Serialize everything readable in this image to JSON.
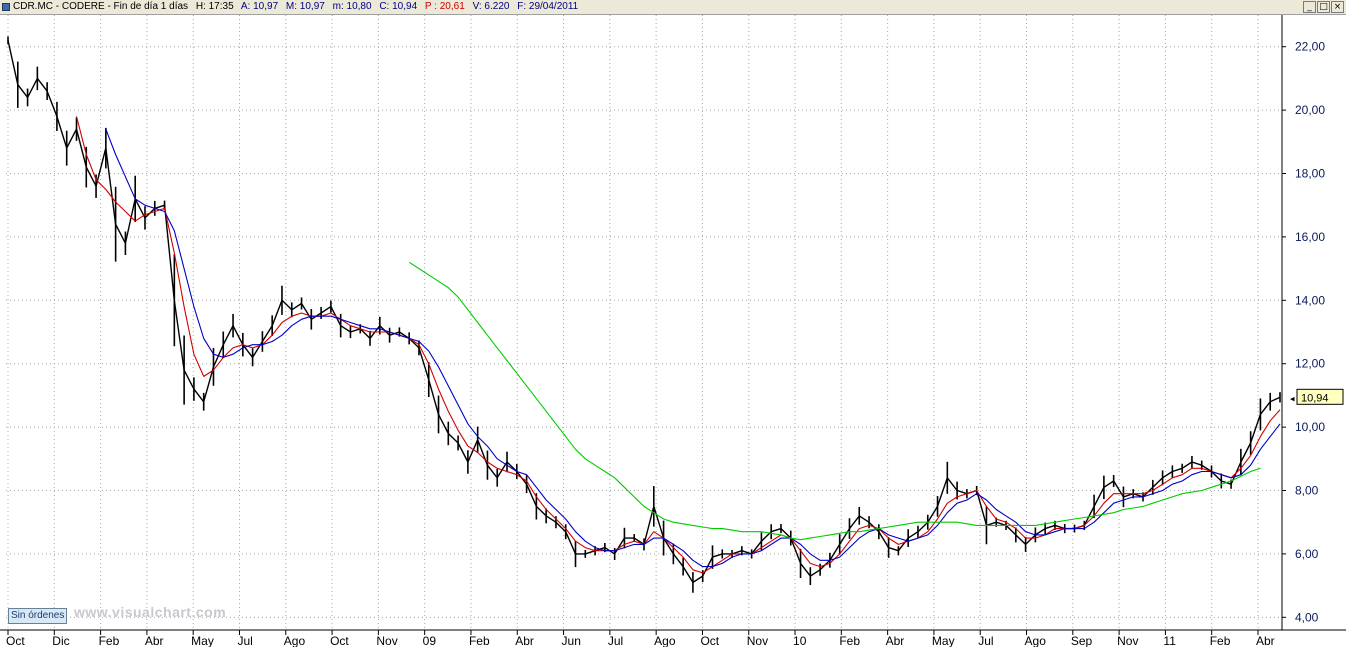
{
  "window": {
    "title_parts": [
      {
        "text": "CDR.MC - CODERE - Fin de día 1 días",
        "style": "normal"
      },
      {
        "text": "H: 17:35",
        "style": "normal"
      },
      {
        "text": "A: 10,97",
        "style": "blue"
      },
      {
        "text": "M: 10,97",
        "style": "blue"
      },
      {
        "text": "m: 10,80",
        "style": "blue"
      },
      {
        "text": "C: 10,94",
        "style": "blue"
      },
      {
        "text": "P : 20,61",
        "style": "red"
      },
      {
        "text": "V: 6.220",
        "style": "blue"
      },
      {
        "text": "F: 29/04/2011",
        "style": "blue"
      }
    ],
    "buttons": [
      "_",
      "□",
      "×"
    ]
  },
  "watermark": "www.visualchart.com",
  "orders_button": "Sin órdenes",
  "colors": {
    "price": "#000000",
    "ma_red": "#d00000",
    "ma_blue": "#0000c8",
    "ma_green": "#00cc00",
    "grid": "#a8a8a8",
    "axis_label": "#0a1a5a",
    "last_label_bg": "#ffffc0"
  },
  "chart_data": {
    "type": "line",
    "title": "",
    "xlabel": "",
    "ylabel": "",
    "ylim": [
      3.6,
      23.0
    ],
    "y_ticks": [
      "22,00",
      "20,00",
      "18,00",
      "16,00",
      "14,00",
      "12,00",
      "10,00",
      "8,00",
      "6,00",
      "4,00"
    ],
    "x_ticks": [
      "Oct",
      "Dic",
      "Feb",
      "Abr",
      "May",
      "Jul",
      "Ago",
      "Oct",
      "Nov",
      "09",
      "Feb",
      "Abr",
      "Jun",
      "Jul",
      "Ago",
      "Oct",
      "Nov",
      "10",
      "Feb",
      "Abr",
      "May",
      "Jul",
      "Ago",
      "Sep",
      "Nov",
      "11",
      "Feb",
      "Abr"
    ],
    "last_value_label": "10,94",
    "grid": true,
    "series": [
      {
        "role": "price",
        "values": [
          22.2,
          20.8,
          20.4,
          21.0,
          20.6,
          19.8,
          18.8,
          19.4,
          18.2,
          17.6,
          18.8,
          16.4,
          15.8,
          17.2,
          16.6,
          16.9,
          17.0,
          14.0,
          11.8,
          11.2,
          10.8,
          11.9,
          12.6,
          13.2,
          12.6,
          12.2,
          12.7,
          13.2,
          14.0,
          13.7,
          13.9,
          13.4,
          13.6,
          13.8,
          13.2,
          13.0,
          13.1,
          12.8,
          13.2,
          12.9,
          13.0,
          12.8,
          12.5,
          11.5,
          10.4,
          9.8,
          9.5,
          8.9,
          9.6,
          8.8,
          8.4,
          8.9,
          8.6,
          8.2,
          7.5,
          7.2,
          7.0,
          6.7,
          6.0,
          6.0,
          6.1,
          6.2,
          6.0,
          6.5,
          6.5,
          6.3,
          7.5,
          6.5,
          6.0,
          5.6,
          5.1,
          5.3,
          5.9,
          6.0,
          6.0,
          6.1,
          6.0,
          6.4,
          6.7,
          6.8,
          6.5,
          5.7,
          5.3,
          5.5,
          5.8,
          6.3,
          6.8,
          7.2,
          7.0,
          6.7,
          6.2,
          6.1,
          6.5,
          6.7,
          7.0,
          7.5,
          8.4,
          8.0,
          7.9,
          8.0,
          6.9,
          7.0,
          6.9,
          6.6,
          6.3,
          6.6,
          6.8,
          6.9,
          6.8,
          6.8,
          6.9,
          7.5,
          8.1,
          8.3,
          7.8,
          7.9,
          7.8,
          8.1,
          8.4,
          8.6,
          8.7,
          8.9,
          8.8,
          8.6,
          8.3,
          8.2,
          8.9,
          9.5,
          10.4,
          10.8,
          10.94
        ]
      },
      {
        "role": "ma_red",
        "values": [
          null,
          null,
          null,
          null,
          null,
          null,
          null,
          19.8,
          18.6,
          17.8,
          17.5,
          17.1,
          16.8,
          16.5,
          16.7,
          16.8,
          16.9,
          15.5,
          13.8,
          12.3,
          11.6,
          11.8,
          12.2,
          12.5,
          12.6,
          12.5,
          12.6,
          12.9,
          13.3,
          13.5,
          13.6,
          13.5,
          13.5,
          13.6,
          13.4,
          13.2,
          13.1,
          13.0,
          13.0,
          13.0,
          12.9,
          12.8,
          12.6,
          12.0,
          11.2,
          10.5,
          9.9,
          9.4,
          9.2,
          8.9,
          8.7,
          8.6,
          8.5,
          8.3,
          7.8,
          7.4,
          7.1,
          6.8,
          6.4,
          6.2,
          6.1,
          6.1,
          6.1,
          6.3,
          6.4,
          6.3,
          6.7,
          6.5,
          6.2,
          5.9,
          5.5,
          5.4,
          5.6,
          5.8,
          6.0,
          6.0,
          6.0,
          6.2,
          6.4,
          6.6,
          6.5,
          6.1,
          5.7,
          5.6,
          5.7,
          6.0,
          6.4,
          6.8,
          6.9,
          6.8,
          6.5,
          6.3,
          6.4,
          6.5,
          6.7,
          7.1,
          7.6,
          7.8,
          7.9,
          8.0,
          7.5,
          7.1,
          7.0,
          6.8,
          6.5,
          6.5,
          6.6,
          6.8,
          6.8,
          6.8,
          6.9,
          7.2,
          7.6,
          7.9,
          7.9,
          7.9,
          7.9,
          8.0,
          8.2,
          8.4,
          8.5,
          8.7,
          8.7,
          8.6,
          8.5,
          8.4,
          8.7,
          9.1,
          9.7,
          10.2,
          10.55
        ]
      },
      {
        "role": "ma_blue",
        "values": [
          null,
          null,
          null,
          null,
          null,
          null,
          null,
          null,
          null,
          null,
          19.4,
          18.6,
          17.9,
          17.2,
          17.0,
          16.9,
          16.8,
          16.2,
          15.0,
          13.8,
          12.8,
          12.3,
          12.2,
          12.3,
          12.5,
          12.6,
          12.6,
          12.7,
          12.9,
          13.2,
          13.4,
          13.5,
          13.5,
          13.5,
          13.4,
          13.3,
          13.2,
          13.1,
          13.1,
          13.0,
          12.9,
          12.8,
          12.7,
          12.4,
          11.9,
          11.3,
          10.7,
          10.1,
          9.7,
          9.4,
          9.0,
          8.8,
          8.6,
          8.5,
          8.1,
          7.7,
          7.4,
          7.1,
          6.7,
          6.4,
          6.2,
          6.1,
          6.1,
          6.2,
          6.3,
          6.3,
          6.5,
          6.5,
          6.3,
          6.1,
          5.8,
          5.6,
          5.6,
          5.7,
          5.9,
          6.0,
          6.0,
          6.1,
          6.3,
          6.5,
          6.5,
          6.3,
          6.0,
          5.8,
          5.8,
          5.9,
          6.2,
          6.5,
          6.7,
          6.8,
          6.6,
          6.5,
          6.4,
          6.5,
          6.6,
          6.9,
          7.3,
          7.6,
          7.7,
          7.9,
          7.7,
          7.4,
          7.2,
          7.0,
          6.7,
          6.6,
          6.6,
          6.7,
          6.8,
          6.8,
          6.8,
          7.0,
          7.3,
          7.6,
          7.7,
          7.8,
          7.8,
          7.9,
          8.0,
          8.2,
          8.3,
          8.5,
          8.6,
          8.6,
          8.5,
          8.4,
          8.5,
          8.8,
          9.3,
          9.7,
          10.1
        ]
      },
      {
        "role": "ma_green",
        "values": [
          null,
          null,
          null,
          null,
          null,
          null,
          null,
          null,
          null,
          null,
          null,
          null,
          null,
          null,
          null,
          null,
          null,
          null,
          null,
          null,
          null,
          null,
          null,
          null,
          null,
          null,
          null,
          null,
          null,
          null,
          null,
          null,
          null,
          null,
          null,
          null,
          null,
          null,
          null,
          null,
          null,
          15.2,
          15.0,
          14.8,
          14.6,
          14.4,
          14.1,
          13.7,
          13.3,
          12.9,
          12.5,
          12.1,
          11.7,
          11.3,
          10.9,
          10.5,
          10.1,
          9.7,
          9.3,
          9.0,
          8.8,
          8.6,
          8.4,
          8.1,
          7.8,
          7.5,
          7.3,
          7.1,
          7.0,
          6.95,
          6.9,
          6.85,
          6.8,
          6.8,
          6.75,
          6.7,
          6.7,
          6.7,
          6.65,
          6.6,
          6.5,
          6.45,
          6.5,
          6.55,
          6.6,
          6.65,
          6.7,
          6.7,
          6.75,
          6.8,
          6.85,
          6.9,
          6.95,
          7.0,
          7.0,
          7.0,
          7.0,
          7.0,
          6.95,
          6.9,
          6.9,
          6.9,
          6.9,
          6.9,
          6.9,
          6.9,
          6.95,
          7.0,
          7.05,
          7.1,
          7.15,
          7.2,
          7.25,
          7.3,
          7.4,
          7.45,
          7.5,
          7.6,
          7.7,
          7.8,
          7.9,
          7.95,
          8.0,
          8.1,
          8.2,
          8.3,
          8.45,
          8.6,
          8.7
        ]
      }
    ]
  }
}
